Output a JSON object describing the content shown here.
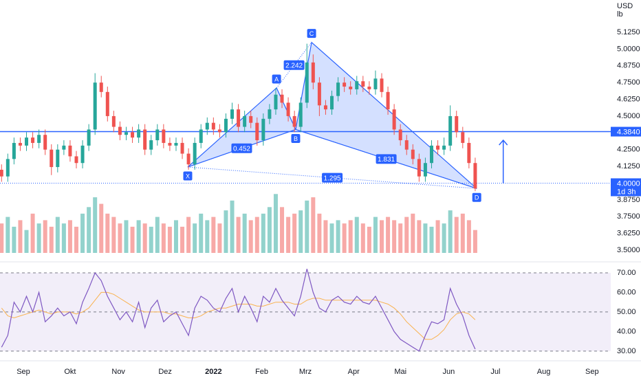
{
  "chart_data": [
    {
      "type": "candlestick",
      "ylabel": [
        "USD",
        "lb"
      ],
      "xlim": [
        -15,
        377
      ],
      "ylim": [
        3.418,
        5.366
      ],
      "yticks": [
        {
          "value": 5.125,
          "label": "5.1250"
        },
        {
          "value": 5.0,
          "label": "5.0000"
        },
        {
          "value": 4.875,
          "label": "4.8750"
        },
        {
          "value": 4.75,
          "label": "4.7500"
        },
        {
          "value": 4.625,
          "label": "4.6250"
        },
        {
          "value": 4.5,
          "label": "4.5000"
        },
        {
          "value": 4.25,
          "label": "4.2500"
        },
        {
          "value": 4.125,
          "label": "4.1250"
        },
        {
          "value": 3.875,
          "label": "3.8750"
        },
        {
          "value": 3.75,
          "label": "3.7500"
        },
        {
          "value": 3.625,
          "label": "3.6250"
        },
        {
          "value": 3.5,
          "label": "3.5000"
        }
      ],
      "up_color": "#26a69a",
      "down_color": "#ef5350",
      "x": [
        -14,
        -10,
        -6,
        -2,
        2,
        6,
        10,
        14,
        18,
        22,
        26,
        30,
        34,
        38,
        42,
        46,
        50,
        54,
        58,
        62,
        66,
        70,
        74,
        78,
        82,
        86,
        90,
        94,
        98,
        102,
        106,
        110,
        114,
        118,
        122,
        126,
        130,
        134,
        138,
        142,
        146,
        150,
        154,
        158,
        162,
        166,
        170,
        174,
        178,
        182,
        186,
        190,
        194,
        198,
        202,
        206,
        210,
        214,
        218,
        222,
        226,
        230,
        234,
        238,
        242,
        246,
        250,
        254,
        258,
        262,
        266,
        270,
        274,
        278,
        282,
        286,
        290
      ],
      "open": [
        4.1,
        4.05,
        4.18,
        4.3,
        4.28,
        4.34,
        4.3,
        4.36,
        4.25,
        4.12,
        4.25,
        4.28,
        4.2,
        4.15,
        4.28,
        4.4,
        4.75,
        4.68,
        4.5,
        4.42,
        4.36,
        4.38,
        4.34,
        4.4,
        4.25,
        4.32,
        4.4,
        4.3,
        4.28,
        4.3,
        4.22,
        4.14,
        4.3,
        4.4,
        4.45,
        4.4,
        4.38,
        4.48,
        4.55,
        4.42,
        4.5,
        4.45,
        4.32,
        4.48,
        4.55,
        4.66,
        4.6,
        4.5,
        4.42,
        4.6,
        4.9,
        4.75,
        4.58,
        4.55,
        4.65,
        4.75,
        4.72,
        4.7,
        4.76,
        4.72,
        4.7,
        4.78,
        4.68,
        4.55,
        4.4,
        4.32,
        4.25,
        4.18,
        4.05,
        4.15,
        4.28,
        4.25,
        4.28,
        4.5,
        4.38,
        4.3,
        4.15
      ],
      "high": [
        4.14,
        4.22,
        4.34,
        4.34,
        4.38,
        4.38,
        4.4,
        4.4,
        4.29,
        4.29,
        4.32,
        4.32,
        4.24,
        4.32,
        4.44,
        4.82,
        4.8,
        4.72,
        4.54,
        4.46,
        4.42,
        4.42,
        4.44,
        4.44,
        4.36,
        4.44,
        4.44,
        4.34,
        4.34,
        4.34,
        4.26,
        4.34,
        4.44,
        4.49,
        4.49,
        4.44,
        4.52,
        4.6,
        4.59,
        4.54,
        4.54,
        4.49,
        4.52,
        4.59,
        4.71,
        4.7,
        4.64,
        4.54,
        4.64,
        5.04,
        4.96,
        4.79,
        4.62,
        4.69,
        4.79,
        4.79,
        4.76,
        4.8,
        4.8,
        4.76,
        4.84,
        4.82,
        4.72,
        4.59,
        4.44,
        4.36,
        4.29,
        4.22,
        4.19,
        4.32,
        4.32,
        4.34,
        4.58,
        4.54,
        4.42,
        4.34,
        4.19
      ],
      "low": [
        4.01,
        4.01,
        4.14,
        4.24,
        4.24,
        4.26,
        4.26,
        4.21,
        4.06,
        4.08,
        4.21,
        4.16,
        4.11,
        4.11,
        4.24,
        4.36,
        4.64,
        4.46,
        4.38,
        4.32,
        4.32,
        4.3,
        4.3,
        4.21,
        4.21,
        4.28,
        4.26,
        4.24,
        4.24,
        4.18,
        4.1,
        4.1,
        4.26,
        4.36,
        4.36,
        4.34,
        4.34,
        4.44,
        4.38,
        4.38,
        4.41,
        4.28,
        4.28,
        4.44,
        4.51,
        4.56,
        4.46,
        4.38,
        4.38,
        4.56,
        4.7,
        4.5,
        4.51,
        4.51,
        4.61,
        4.68,
        4.66,
        4.66,
        4.68,
        4.66,
        4.66,
        4.64,
        4.51,
        4.36,
        4.28,
        4.21,
        4.14,
        4.01,
        4.01,
        4.11,
        4.21,
        4.21,
        4.24,
        4.34,
        4.26,
        4.11,
        3.94
      ],
      "close": [
        4.05,
        4.18,
        4.3,
        4.28,
        4.34,
        4.3,
        4.36,
        4.25,
        4.12,
        4.25,
        4.28,
        4.2,
        4.15,
        4.28,
        4.4,
        4.75,
        4.68,
        4.5,
        4.42,
        4.36,
        4.38,
        4.34,
        4.4,
        4.25,
        4.32,
        4.4,
        4.3,
        4.28,
        4.3,
        4.22,
        4.14,
        4.3,
        4.4,
        4.45,
        4.4,
        4.38,
        4.48,
        4.55,
        4.42,
        4.5,
        4.45,
        4.32,
        4.48,
        4.55,
        4.66,
        4.6,
        4.5,
        4.42,
        4.6,
        4.9,
        4.75,
        4.58,
        4.55,
        4.65,
        4.75,
        4.72,
        4.7,
        4.76,
        4.72,
        4.7,
        4.78,
        4.68,
        4.55,
        4.4,
        4.32,
        4.25,
        4.18,
        4.05,
        4.15,
        4.28,
        4.25,
        4.28,
        4.5,
        4.38,
        4.3,
        4.15,
        3.96
      ],
      "volume": [
        45,
        55,
        40,
        50,
        35,
        60,
        45,
        50,
        40,
        55,
        45,
        50,
        40,
        60,
        70,
        85,
        75,
        60,
        55,
        45,
        50,
        40,
        50,
        45,
        40,
        55,
        45,
        40,
        50,
        40,
        55,
        45,
        60,
        50,
        55,
        45,
        65,
        80,
        55,
        60,
        50,
        55,
        60,
        70,
        90,
        70,
        55,
        60,
        65,
        80,
        85,
        60,
        50,
        45,
        50,
        45,
        50,
        55,
        45,
        40,
        55,
        50,
        55,
        50,
        45,
        55,
        60,
        50,
        45,
        40,
        50,
        45,
        65,
        55,
        60,
        50,
        35
      ],
      "volume_lim": [
        0,
        105
      ],
      "hline": {
        "value": 4.384,
        "label": "4.3840",
        "color": "#2962ff"
      },
      "last_price": {
        "value": 4.0,
        "label": "4.0000",
        "countdown": "1d 3h",
        "color": "#2962ff"
      },
      "pattern": {
        "color": "#2962ff",
        "points": [
          {
            "label": "X",
            "x": 105.5,
            "y": 4.12
          },
          {
            "label": "A",
            "x": 162.5,
            "y": 4.71
          },
          {
            "label": "B",
            "x": 174.8,
            "y": 4.4
          },
          {
            "label": "C",
            "x": 185,
            "y": 5.05
          },
          {
            "label": "D",
            "x": 291,
            "y": 3.96
          }
        ],
        "ratios": [
          0.452,
          2.242,
          1.831,
          1.295
        ]
      },
      "arrow": {
        "x": 308,
        "from": 4.0,
        "to": 4.32,
        "color": "#2962ff"
      }
    },
    {
      "type": "line",
      "xlim": [
        -15,
        377
      ],
      "ylim": [
        26.8,
        74.2
      ],
      "yticks": [
        {
          "value": 70,
          "label": "70.00"
        },
        {
          "value": 60,
          "label": "60.00"
        },
        {
          "value": 50,
          "label": "50.00"
        },
        {
          "value": 40,
          "label": "40.00"
        },
        {
          "value": 30,
          "label": "30.00"
        }
      ],
      "dashed_levels": [
        70,
        50,
        30
      ],
      "band": [
        30,
        70
      ],
      "band_color": "rgba(126,87,194,0.1)",
      "xticks": [
        {
          "value": 0,
          "label": "Sep"
        },
        {
          "value": 30,
          "label": "Okt"
        },
        {
          "value": 61,
          "label": "Nov"
        },
        {
          "value": 91,
          "label": "Dez"
        },
        {
          "value": 122,
          "label": "2022"
        },
        {
          "value": 153,
          "label": "Feb"
        },
        {
          "value": 181,
          "label": "Mrz"
        },
        {
          "value": 212,
          "label": "Apr"
        },
        {
          "value": 242,
          "label": "Mai"
        },
        {
          "value": 273,
          "label": "Jun"
        },
        {
          "value": 303,
          "label": "Jul"
        },
        {
          "value": 334,
          "label": "Aug"
        },
        {
          "value": 365,
          "label": "Sep"
        }
      ],
      "x": [
        -14,
        -10,
        -6,
        -2,
        2,
        6,
        10,
        14,
        18,
        22,
        26,
        30,
        34,
        38,
        42,
        46,
        50,
        54,
        58,
        62,
        66,
        70,
        74,
        78,
        82,
        86,
        90,
        94,
        98,
        102,
        106,
        110,
        114,
        118,
        122,
        126,
        130,
        134,
        138,
        142,
        146,
        150,
        154,
        158,
        162,
        166,
        170,
        174,
        178,
        182,
        186,
        190,
        194,
        198,
        202,
        206,
        210,
        214,
        218,
        222,
        226,
        230,
        234,
        238,
        242,
        246,
        250,
        254,
        258,
        262,
        266,
        270,
        274,
        278,
        282,
        286,
        290
      ],
      "series": [
        {
          "color": "#7e57c2",
          "values": [
            32,
            38,
            55,
            50,
            58,
            50,
            60,
            45,
            48,
            52,
            48,
            50,
            44,
            55,
            62,
            70,
            66,
            58,
            52,
            46,
            50,
            45,
            55,
            42,
            52,
            56,
            45,
            48,
            50,
            44,
            38,
            52,
            58,
            56,
            52,
            50,
            57,
            62,
            50,
            58,
            52,
            45,
            58,
            55,
            62,
            56,
            52,
            48,
            58,
            72,
            60,
            52,
            50,
            56,
            58,
            55,
            54,
            58,
            55,
            54,
            58,
            52,
            46,
            40,
            36,
            34,
            32,
            30,
            38,
            45,
            44,
            46,
            62,
            54,
            48,
            38,
            31
          ]
        },
        {
          "color": "#f9b24f",
          "values": [
            52,
            48,
            47,
            48,
            49,
            50,
            51,
            50,
            49,
            50,
            50,
            50,
            49,
            50,
            52,
            56,
            60,
            60,
            59,
            57,
            55,
            53,
            51,
            50,
            50,
            50,
            50,
            49,
            49,
            48,
            47,
            47,
            48,
            50,
            51,
            52,
            52,
            53,
            54,
            54,
            54,
            53,
            53,
            54,
            55,
            55,
            55,
            54,
            54,
            56,
            57,
            57,
            56,
            56,
            56,
            56,
            56,
            56,
            56,
            56,
            56,
            55,
            54,
            52,
            49,
            45,
            42,
            39,
            36,
            36,
            38,
            41,
            46,
            49,
            50,
            49,
            46
          ]
        }
      ]
    }
  ]
}
